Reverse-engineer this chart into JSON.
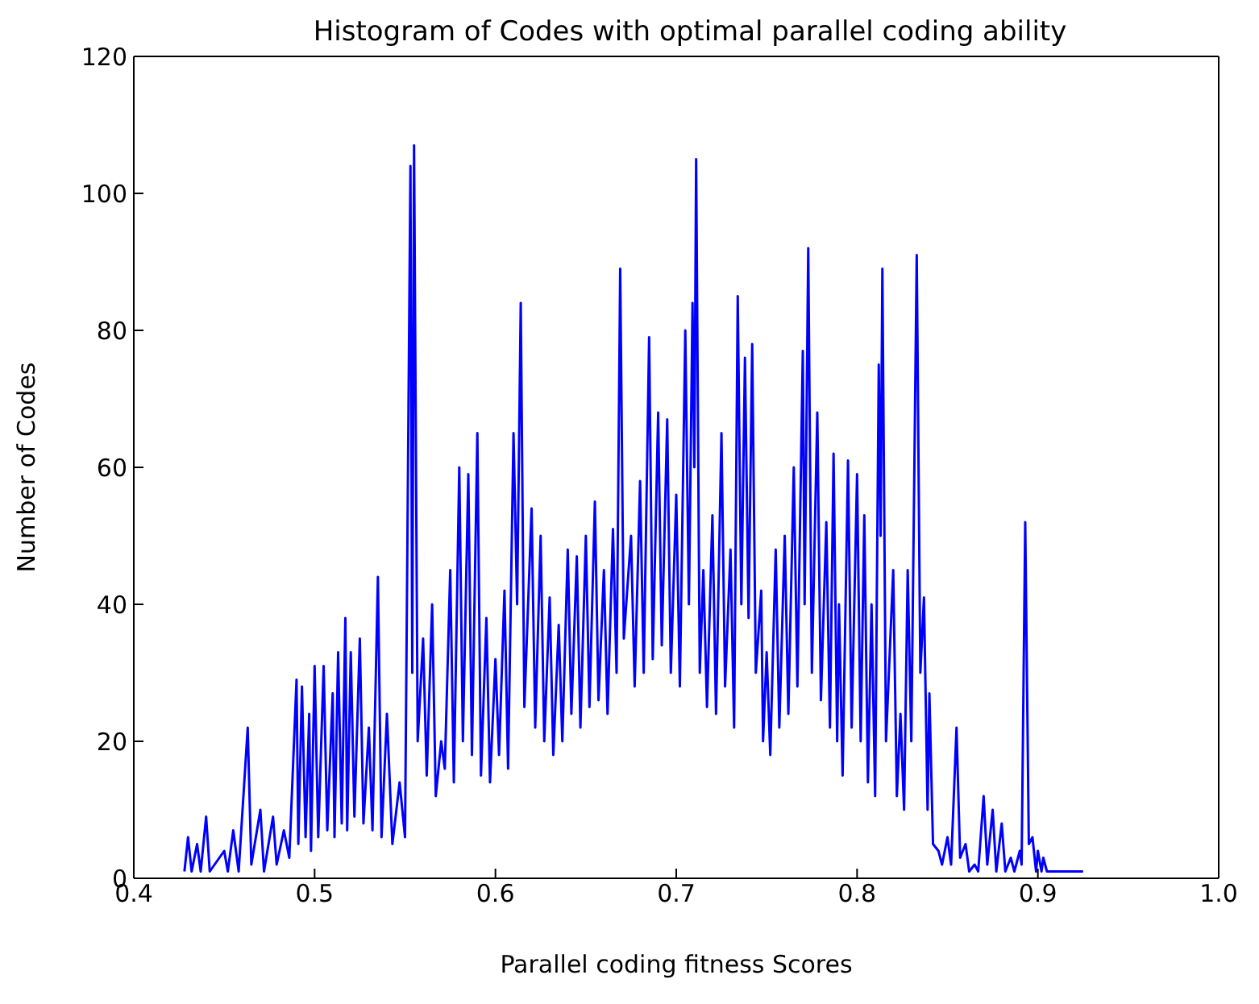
{
  "chart_data": {
    "type": "line",
    "title": "Histogram of Codes with optimal parallel coding ability",
    "xlabel": "Parallel coding fitness Scores",
    "ylabel": "Number of Codes",
    "xlim": [
      0.4,
      1.0
    ],
    "xticks": [
      0.4,
      0.5,
      0.6,
      0.7,
      0.8,
      0.9,
      {
        "value": 1,
        "label": "1.0"
      }
    ],
    "ylim": [
      0,
      120
    ],
    "yticks": [
      0,
      20,
      40,
      60,
      80,
      100,
      120
    ],
    "marker": "none",
    "line_style": "solid",
    "series": [
      {
        "color": "#0000ff",
        "x": [
          0.428,
          0.43,
          0.432,
          0.435,
          0.437,
          0.44,
          0.442,
          0.45,
          0.452,
          0.455,
          0.458,
          0.463,
          0.465,
          0.47,
          0.472,
          0.477,
          0.479,
          0.483,
          0.486,
          0.49,
          0.491,
          0.493,
          0.495,
          0.497,
          0.498,
          0.5,
          0.502,
          0.505,
          0.507,
          0.51,
          0.511,
          0.513,
          0.515,
          0.517,
          0.518,
          0.52,
          0.522,
          0.525,
          0.527,
          0.53,
          0.532,
          0.535,
          0.537,
          0.54,
          0.543,
          0.547,
          0.55,
          0.553,
          0.554,
          0.555,
          0.557,
          0.56,
          0.562,
          0.565,
          0.567,
          0.57,
          0.572,
          0.575,
          0.577,
          0.58,
          0.582,
          0.585,
          0.587,
          0.59,
          0.592,
          0.595,
          0.597,
          0.6,
          0.602,
          0.605,
          0.607,
          0.61,
          0.612,
          0.614,
          0.616,
          0.62,
          0.622,
          0.625,
          0.627,
          0.63,
          0.632,
          0.635,
          0.637,
          0.64,
          0.642,
          0.645,
          0.647,
          0.65,
          0.652,
          0.655,
          0.657,
          0.66,
          0.662,
          0.665,
          0.667,
          0.669,
          0.671,
          0.675,
          0.677,
          0.68,
          0.682,
          0.685,
          0.687,
          0.69,
          0.692,
          0.695,
          0.697,
          0.7,
          0.702,
          0.705,
          0.707,
          0.709,
          0.71,
          0.711,
          0.713,
          0.715,
          0.717,
          0.72,
          0.722,
          0.725,
          0.727,
          0.73,
          0.732,
          0.734,
          0.736,
          0.738,
          0.74,
          0.742,
          0.744,
          0.747,
          0.748,
          0.75,
          0.752,
          0.755,
          0.757,
          0.76,
          0.762,
          0.765,
          0.767,
          0.77,
          0.771,
          0.773,
          0.775,
          0.778,
          0.78,
          0.783,
          0.785,
          0.787,
          0.789,
          0.79,
          0.792,
          0.795,
          0.797,
          0.8,
          0.802,
          0.804,
          0.806,
          0.808,
          0.81,
          0.812,
          0.813,
          0.814,
          0.816,
          0.82,
          0.822,
          0.824,
          0.826,
          0.828,
          0.83,
          0.833,
          0.835,
          0.837,
          0.839,
          0.84,
          0.842,
          0.845,
          0.847,
          0.85,
          0.852,
          0.855,
          0.857,
          0.86,
          0.862,
          0.865,
          0.867,
          0.87,
          0.872,
          0.875,
          0.877,
          0.88,
          0.882,
          0.885,
          0.887,
          0.89,
          0.891,
          0.893,
          0.895,
          0.897,
          0.899,
          0.9,
          0.902,
          0.903,
          0.905,
          0.925
        ],
        "values": [
          1,
          6,
          1,
          5,
          1,
          9,
          1,
          4,
          1,
          7,
          1,
          22,
          2,
          10,
          1,
          9,
          2,
          7,
          3,
          29,
          5,
          28,
          6,
          24,
          4,
          31,
          6,
          31,
          7,
          27,
          6,
          33,
          8,
          38,
          7,
          33,
          9,
          35,
          8,
          22,
          7,
          44,
          6,
          24,
          5,
          14,
          6,
          104,
          30,
          107,
          20,
          35,
          15,
          40,
          12,
          20,
          16,
          45,
          14,
          60,
          20,
          59,
          18,
          65,
          15,
          38,
          14,
          32,
          18,
          42,
          16,
          65,
          40,
          84,
          25,
          54,
          22,
          50,
          20,
          41,
          18,
          37,
          20,
          48,
          24,
          47,
          22,
          50,
          25,
          55,
          26,
          45,
          24,
          51,
          30,
          89,
          35,
          50,
          28,
          58,
          30,
          79,
          32,
          68,
          34,
          67,
          30,
          56,
          28,
          80,
          40,
          84,
          60,
          105,
          30,
          45,
          25,
          53,
          24,
          65,
          28,
          48,
          22,
          85,
          40,
          76,
          38,
          78,
          30,
          42,
          20,
          33,
          18,
          48,
          22,
          50,
          24,
          60,
          28,
          77,
          40,
          92,
          30,
          68,
          26,
          52,
          22,
          62,
          20,
          40,
          15,
          61,
          22,
          59,
          20,
          53,
          14,
          40,
          12,
          75,
          50,
          89,
          20,
          45,
          12,
          24,
          10,
          45,
          20,
          91,
          30,
          41,
          10,
          27,
          5,
          4,
          2,
          6,
          2,
          22,
          3,
          5,
          1,
          2,
          1,
          12,
          2,
          10,
          1,
          8,
          1,
          3,
          1,
          4,
          2,
          52,
          5,
          6,
          1,
          4,
          1,
          3,
          1,
          1
        ]
      }
    ]
  }
}
